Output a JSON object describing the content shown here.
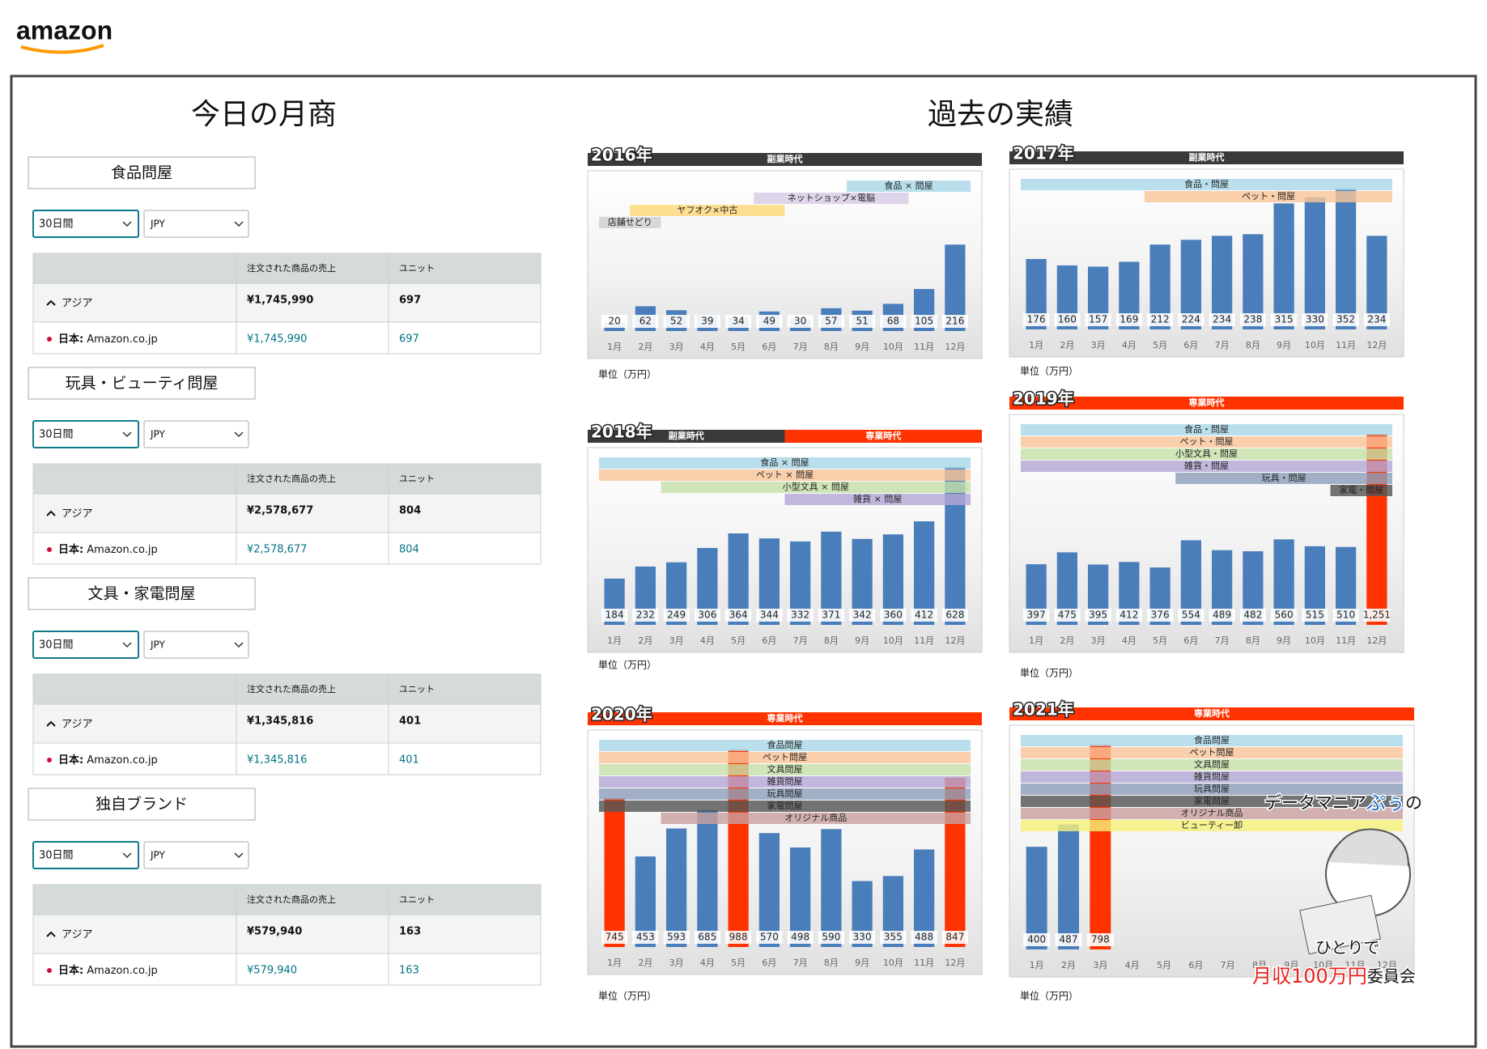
{
  "logo": "amazon",
  "today": {
    "title": "今日の月商",
    "header": [
      "注文された商品の売上",
      "ユニット"
    ],
    "cards": [
      {
        "name": "食品問屋",
        "period": "30日間",
        "currency": "JPY",
        "region": "アジア",
        "region_sales": "¥1,745,990",
        "region_units": "697",
        "market_label": "日本:",
        "market": "Amazon.co.jp",
        "market_sales": "¥1,745,990",
        "market_units": "697"
      },
      {
        "name": "玩具・ビューティ問屋",
        "period": "30日間",
        "currency": "JPY",
        "region": "アジア",
        "region_sales": "¥2,578,677",
        "region_units": "804",
        "market_label": "日本:",
        "market": "Amazon.co.jp",
        "market_sales": "¥2,578,677",
        "market_units": "804"
      },
      {
        "name": "文具・家電問屋",
        "period": "30日間",
        "currency": "JPY",
        "region": "アジア",
        "region_sales": "¥1,345,816",
        "region_units": "401",
        "market_label": "日本:",
        "market": "Amazon.co.jp",
        "market_sales": "¥1,345,816",
        "market_units": "401"
      },
      {
        "name": "独自ブランド",
        "period": "30日間",
        "currency": "JPY",
        "region": "アジア",
        "region_sales": "¥579,940",
        "region_units": "163",
        "market_label": "日本:",
        "market": "Amazon.co.jp",
        "market_sales": "¥579,940",
        "market_units": "163"
      }
    ]
  },
  "past_title": "過去の実績",
  "chart_data": [
    {
      "type": "bar",
      "title": "2016年",
      "unit_note": "単位（万円）",
      "color": "#4a7ebb",
      "categories": [
        "1月",
        "2月",
        "3月",
        "4月",
        "5月",
        "6月",
        "7月",
        "8月",
        "9月",
        "10月",
        "11月",
        "12月"
      ],
      "values": [
        20,
        62,
        52,
        39,
        34,
        49,
        30,
        57,
        51,
        68,
        105,
        216
      ],
      "eras": [
        {
          "label": "副業時代",
          "color": "#3a3a3a",
          "from": "1月",
          "to": "12月"
        }
      ],
      "bands": [
        {
          "label": "食品 × 問屋",
          "color": "#a8d8e6",
          "from": "9月",
          "to": "12月"
        },
        {
          "label": "ネットショップ×電脳",
          "color": "#d8cce6",
          "from": "6月",
          "to": "10月"
        },
        {
          "label": "ヤフオク×中古",
          "color": "#ffd97a",
          "from": "2月",
          "to": "6月"
        },
        {
          "label": "店舗せどり",
          "color": "#d0d0d0",
          "from": "1月",
          "to": "2月"
        }
      ]
    },
    {
      "type": "bar",
      "title": "2017年",
      "unit_note": "単位（万円）",
      "color": "#4a7ebb",
      "categories": [
        "1月",
        "2月",
        "3月",
        "4月",
        "5月",
        "6月",
        "7月",
        "8月",
        "9月",
        "10月",
        "11月",
        "12月"
      ],
      "values": [
        176,
        160,
        157,
        169,
        212,
        224,
        234,
        238,
        315,
        330,
        352,
        234
      ],
      "eras": [
        {
          "label": "副業時代",
          "color": "#3a3a3a",
          "from": "1月",
          "to": "12月"
        }
      ],
      "bands": [
        {
          "label": "食品・問屋",
          "color": "#a8d8e6",
          "from": "1月",
          "to": "12月"
        },
        {
          "label": "ペット・問屋",
          "color": "#f9c49a",
          "from": "5月",
          "to": "12月"
        }
      ]
    },
    {
      "type": "bar",
      "title": "2018年",
      "unit_note": "単位（万円）",
      "color": "#4a7ebb",
      "categories": [
        "1月",
        "2月",
        "3月",
        "4月",
        "5月",
        "6月",
        "7月",
        "8月",
        "9月",
        "10月",
        "11月",
        "12月"
      ],
      "values": [
        184,
        232,
        249,
        306,
        364,
        344,
        332,
        371,
        342,
        360,
        412,
        628
      ],
      "eras": [
        {
          "label": "副業時代",
          "color": "#3a3a3a",
          "from": "1月",
          "to": "6月"
        },
        {
          "label": "専業時代",
          "color": "#ff3300",
          "from": "7月",
          "to": "12月"
        }
      ],
      "bands": [
        {
          "label": "食品 × 問屋",
          "color": "#a8d8e6",
          "from": "1月",
          "to": "12月"
        },
        {
          "label": "ペット × 問屋",
          "color": "#f9c49a",
          "from": "1月",
          "to": "12月"
        },
        {
          "label": "小型文具 × 問屋",
          "color": "#c6e0a8",
          "from": "3月",
          "to": "12月"
        },
        {
          "label": "雑貨 × 問屋",
          "color": "#b4a7d6",
          "from": "7月",
          "to": "12月"
        }
      ]
    },
    {
      "type": "bar",
      "title": "2019年",
      "unit_note": "単位（万円）",
      "color": "#4a7ebb",
      "categories": [
        "1月",
        "2月",
        "3月",
        "4月",
        "5月",
        "6月",
        "7月",
        "8月",
        "9月",
        "10月",
        "11月",
        "12月"
      ],
      "values": [
        397,
        475,
        395,
        412,
        376,
        554,
        489,
        482,
        560,
        515,
        510,
        1251
      ],
      "value_labels": [
        "397",
        "475",
        "395",
        "412",
        "376",
        "554",
        "489",
        "482",
        "560",
        "515",
        "510",
        "1,251"
      ],
      "highlight": {
        "color": "#ff3300",
        "categories": [
          "12月"
        ]
      },
      "eras": [
        {
          "label": "専業時代",
          "color": "#ff3300",
          "from": "1月",
          "to": "12月"
        }
      ],
      "bands": [
        {
          "label": "食品・問屋",
          "color": "#a8d8e6",
          "from": "1月",
          "to": "12月"
        },
        {
          "label": "ペット・問屋",
          "color": "#f9c49a",
          "from": "1月",
          "to": "12月"
        },
        {
          "label": "小型文具・問屋",
          "color": "#c6e0a8",
          "from": "1月",
          "to": "12月"
        },
        {
          "label": "雑貨・問屋",
          "color": "#b4a7d6",
          "from": "1月",
          "to": "12月"
        },
        {
          "label": "玩具・問屋",
          "color": "#8ea0bb",
          "from": "6月",
          "to": "12月"
        },
        {
          "label": "家電・問屋",
          "color": "#555555",
          "from": "11月",
          "to": "12月"
        }
      ]
    },
    {
      "type": "bar",
      "title": "2020年",
      "unit_note": "単位（万円）",
      "color": "#4a7ebb",
      "categories": [
        "1月",
        "2月",
        "3月",
        "4月",
        "5月",
        "6月",
        "7月",
        "8月",
        "9月",
        "10月",
        "11月",
        "12月"
      ],
      "values": [
        745,
        453,
        593,
        685,
        988,
        570,
        498,
        590,
        330,
        355,
        488,
        847
      ],
      "highlight": {
        "color": "#ff3300",
        "categories": [
          "1月",
          "5月",
          "12月"
        ]
      },
      "eras": [
        {
          "label": "専業時代",
          "color": "#ff3300",
          "from": "1月",
          "to": "12月"
        }
      ],
      "bands": [
        {
          "label": "食品問屋",
          "color": "#a8d8e6",
          "from": "1月",
          "to": "12月"
        },
        {
          "label": "ペット問屋",
          "color": "#f9c49a",
          "from": "1月",
          "to": "12月"
        },
        {
          "label": "文具問屋",
          "color": "#c6e0a8",
          "from": "1月",
          "to": "12月"
        },
        {
          "label": "雑貨問屋",
          "color": "#b4a7d6",
          "from": "1月",
          "to": "12月"
        },
        {
          "label": "玩具問屋",
          "color": "#8ea0bb",
          "from": "1月",
          "to": "12月"
        },
        {
          "label": "家電問屋",
          "color": "#555555",
          "from": "1月",
          "to": "12月"
        },
        {
          "label": "オリジナル商品",
          "color": "#c9a0a0",
          "from": "3月",
          "to": "12月"
        }
      ]
    },
    {
      "type": "bar",
      "title": "2021年",
      "unit_note": "単位（万円）",
      "color": "#4a7ebb",
      "categories": [
        "1月",
        "2月",
        "3月",
        "4月",
        "5月",
        "6月",
        "7月",
        "8月",
        "9月",
        "10月",
        "11月",
        "12月"
      ],
      "values": [
        400,
        487,
        798,
        null,
        null,
        null,
        null,
        null,
        null,
        null,
        null,
        null
      ],
      "highlight": {
        "color": "#ff3300",
        "categories": [
          "3月"
        ]
      },
      "eras": [
        {
          "label": "専業時代",
          "color": "#ff3300",
          "from": "1月",
          "to": "12月"
        }
      ],
      "bands": [
        {
          "label": "食品問屋",
          "color": "#a8d8e6",
          "from": "1月",
          "to": "12月"
        },
        {
          "label": "ペット問屋",
          "color": "#f9c49a",
          "from": "1月",
          "to": "12月"
        },
        {
          "label": "文具問屋",
          "color": "#c6e0a8",
          "from": "1月",
          "to": "12月"
        },
        {
          "label": "雑貨問屋",
          "color": "#b4a7d6",
          "from": "1月",
          "to": "12月"
        },
        {
          "label": "玩具問屋",
          "color": "#8ea0bb",
          "from": "1月",
          "to": "12月"
        },
        {
          "label": "家電問屋",
          "color": "#555555",
          "from": "1月",
          "to": "12月"
        },
        {
          "label": "オリジナル商品",
          "color": "#c9a0a0",
          "from": "1月",
          "to": "12月"
        },
        {
          "label": "ビューティー卸",
          "color": "#f5f07a",
          "from": "1月",
          "to": "12月"
        }
      ]
    }
  ],
  "credit": {
    "line1": [
      "データマニア",
      "ぷぅ",
      "の"
    ],
    "line2": "ひとりで",
    "line3": [
      "月収100万円",
      "委員会"
    ]
  }
}
